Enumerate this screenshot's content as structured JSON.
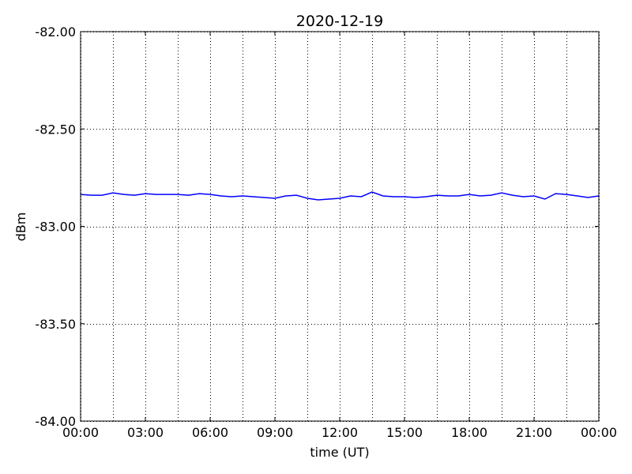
{
  "chart_data": {
    "type": "line",
    "title": "2020-12-19",
    "xlabel": "time (UT)",
    "ylabel": "dBm",
    "x_unit": "hours UT",
    "xlim": [
      0,
      24
    ],
    "ylim": [
      -84.0,
      -82.0
    ],
    "grid": true,
    "x_ticks": [
      0,
      3,
      6,
      9,
      12,
      15,
      18,
      21,
      24
    ],
    "x_tick_labels": [
      "00:00",
      "03:00",
      "06:00",
      "09:00",
      "12:00",
      "15:00",
      "18:00",
      "21:00",
      "00:00"
    ],
    "x_minor_grid_hours": [
      1.5,
      4.5,
      7.5,
      10.5,
      13.5,
      16.5,
      19.5,
      22.5
    ],
    "y_ticks": [
      -82.0,
      -82.5,
      -83.0,
      -83.5,
      -84.0
    ],
    "y_tick_labels": [
      "-82.00",
      "-82.50",
      "-83.00",
      "-83.50",
      "-84.00"
    ],
    "series": [
      {
        "color": "#0000ff",
        "x": [
          0,
          0.5,
          1,
          1.5,
          2,
          2.5,
          3,
          3.5,
          4,
          4.5,
          5,
          5.5,
          6,
          6.5,
          7,
          7.5,
          8,
          8.5,
          9,
          9.5,
          10,
          10.5,
          11,
          11.5,
          12,
          12.5,
          13,
          13.5,
          14,
          14.5,
          15,
          15.5,
          16,
          16.5,
          17,
          17.5,
          18,
          18.5,
          19,
          19.5,
          20,
          20.5,
          21,
          21.5,
          22,
          22.5,
          23,
          23.5,
          24
        ],
        "y": [
          -82.836,
          -82.84,
          -82.84,
          -82.828,
          -82.836,
          -82.84,
          -82.832,
          -82.836,
          -82.836,
          -82.836,
          -82.84,
          -82.832,
          -82.836,
          -82.844,
          -82.848,
          -82.844,
          -82.848,
          -82.852,
          -82.856,
          -82.844,
          -82.84,
          -82.856,
          -82.864,
          -82.86,
          -82.856,
          -82.844,
          -82.848,
          -82.824,
          -82.844,
          -82.848,
          -82.848,
          -82.852,
          -82.848,
          -82.84,
          -82.844,
          -82.844,
          -82.836,
          -82.844,
          -82.84,
          -82.828,
          -82.84,
          -82.848,
          -82.844,
          -82.86,
          -82.832,
          -82.836,
          -82.844,
          -82.852,
          -82.844
        ]
      }
    ]
  }
}
